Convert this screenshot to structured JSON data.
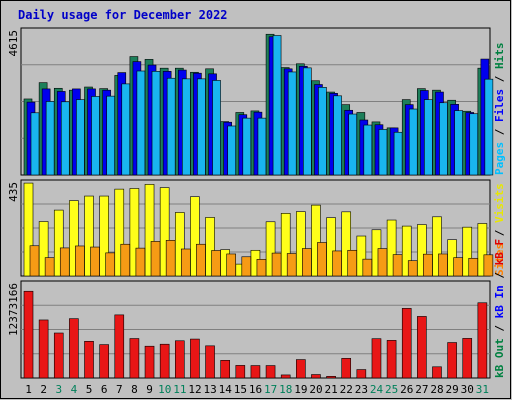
{
  "chart_data": {
    "type": "bar",
    "title": "Daily usage for December 2022",
    "categories": [
      "1",
      "2",
      "3",
      "4",
      "5",
      "6",
      "7",
      "8",
      "9",
      "10",
      "11",
      "12",
      "13",
      "14",
      "15",
      "16",
      "17",
      "18",
      "19",
      "20",
      "21",
      "22",
      "23",
      "24",
      "25",
      "26",
      "27",
      "28",
      "29",
      "30",
      "31"
    ],
    "weekend_days": [
      "3",
      "4",
      "10",
      "11",
      "17",
      "18",
      "24",
      "25",
      "31"
    ],
    "panels": [
      {
        "id": "hits",
        "max_label": "4615",
        "ylim": [
          0,
          4615
        ],
        "legend": [
          {
            "label": "Hits",
            "color": "#008040"
          },
          {
            "label": "Files",
            "color": "#0000ff"
          },
          {
            "label": "Pages",
            "color": "#00c0ff"
          }
        ],
        "series": [
          {
            "name": "Hits",
            "color": "#1d7f5a",
            "values": [
              2420,
              2940,
              2760,
              2700,
              2800,
              2750,
              3170,
              3770,
              3680,
              3400,
              3400,
              3270,
              3380,
              1700,
              1990,
              2040,
              4480,
              3420,
              3540,
              3000,
              2640,
              2240,
              1990,
              1690,
              1500,
              2400,
              2750,
              2700,
              2380,
              2030,
              3400
            ]
          },
          {
            "name": "Files",
            "color": "#0000ee",
            "values": [
              2320,
              2740,
              2660,
              2740,
              2740,
              2700,
              3260,
              3610,
              3500,
              3300,
              3340,
              3240,
              3220,
              1680,
              1920,
              2000,
              4400,
              3380,
              3460,
              2880,
              2600,
              2060,
              1750,
              1600,
              1500,
              2240,
              2690,
              2640,
              2250,
              1990,
              3690
            ]
          },
          {
            "name": "Pages",
            "color": "#19b5ef",
            "values": [
              1980,
              2340,
              2330,
              2400,
              2500,
              2510,
              2900,
              3310,
              3300,
              3080,
              3060,
              3060,
              3010,
              1560,
              1810,
              1810,
              4440,
              3280,
              3410,
              2790,
              2520,
              1940,
              1590,
              1450,
              1360,
              2100,
              2400,
              2300,
              2050,
              1950,
              3050
            ]
          }
        ]
      },
      {
        "id": "visits",
        "max_label": "435",
        "ylim": [
          0,
          435
        ],
        "legend": [
          {
            "label": "Visits",
            "color": "#e8e800"
          },
          {
            "label": "Sites",
            "color": "#ff8000"
          }
        ],
        "series": [
          {
            "name": "Visits",
            "color": "#ffff1a",
            "values": [
              430,
              252,
              305,
              349,
              370,
              370,
              402,
              405,
              424,
              409,
              294,
              367,
              271,
              122,
              55,
              119,
              251,
              290,
              298,
              328,
              270,
              297,
              185,
              214,
              259,
              231,
              238,
              274,
              168,
              226,
              243
            ]
          },
          {
            "name": "Sites",
            "color": "#f69b15",
            "values": [
              140,
              85,
              130,
              139,
              134,
              107,
              147,
              129,
              160,
              165,
              125,
              147,
              118,
              102,
              89,
              77,
              106,
              104,
              127,
              155,
              116,
              119,
              78,
              127,
              99,
              71,
              101,
              102,
              85,
              82,
              98
            ]
          }
        ]
      },
      {
        "id": "kbytes",
        "max_label": "12373166",
        "ylim": [
          0,
          12373166
        ],
        "legend": [
          {
            "label": "kB F",
            "color": "#e00000"
          },
          {
            "label": "kB In",
            "color": "#0000ff"
          },
          {
            "label": "kB Out",
            "color": "#008040"
          }
        ],
        "series": [
          {
            "name": "kB F",
            "color": "#e81616",
            "values": [
              11300000,
              7560000,
              5860000,
              7730000,
              4780000,
              4350000,
              8220000,
              5140000,
              4140000,
              4400000,
              4850000,
              5070000,
              4190000,
              2300000,
              1640000,
              1620000,
              1620000,
              400000,
              2400000,
              450000,
              220000,
              2560000,
              1100000,
              5120000,
              4900000,
              9070000,
              8020000,
              1460000,
              4620000,
              5160000,
              9800000
            ]
          }
        ]
      }
    ]
  }
}
